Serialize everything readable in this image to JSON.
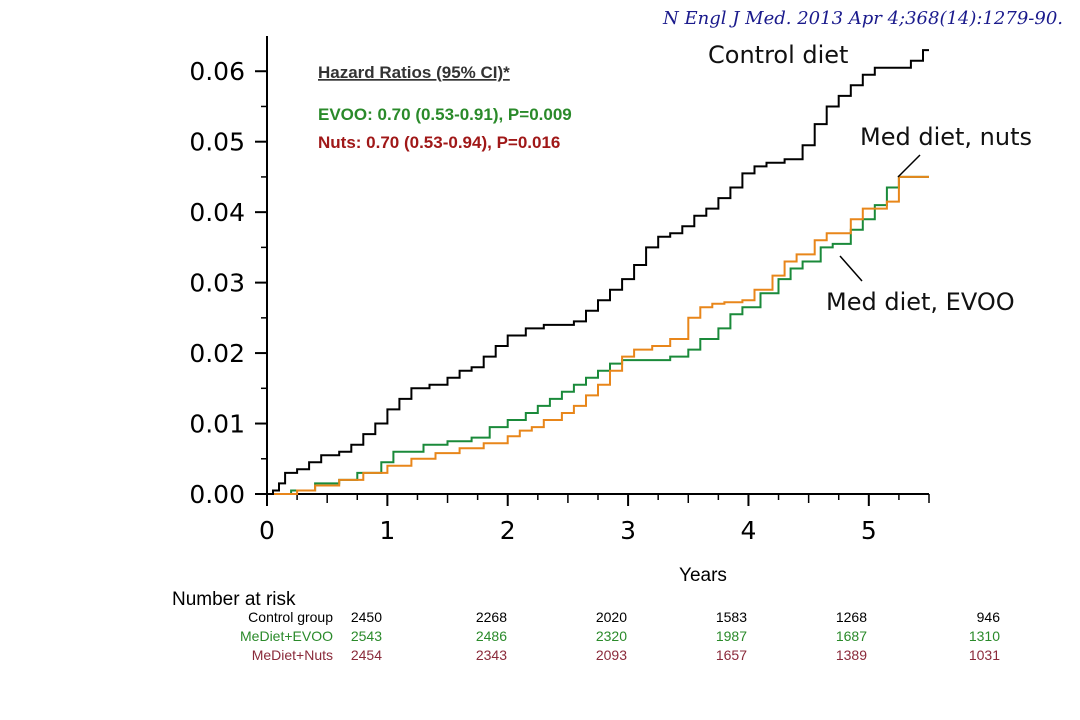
{
  "citation": "N Engl J Med. 2013 Apr 4;368(14):1279-90.",
  "colors": {
    "control": "#000000",
    "evoo": "#1a8a3a",
    "nuts": "#e8861a",
    "evoo_text": "#2a8a2a",
    "nuts_text": "#a01818",
    "risk_nuts_text": "#8a2a3a"
  },
  "chart_data": {
    "type": "line",
    "xlabel": "Years",
    "ylabel": "",
    "xlim": [
      0,
      5.5
    ],
    "ylim": [
      0,
      0.065
    ],
    "x_ticks": [
      "0",
      "1",
      "2",
      "3",
      "4",
      "5"
    ],
    "y_ticks": [
      "0.00",
      "0.01",
      "0.02",
      "0.03",
      "0.04",
      "0.05",
      "0.06"
    ],
    "step": true,
    "series": [
      {
        "name": "Control diet",
        "color_key": "control",
        "points": [
          [
            0,
            0
          ],
          [
            0.05,
            0.0005
          ],
          [
            0.1,
            0.0015
          ],
          [
            0.15,
            0.003
          ],
          [
            0.25,
            0.0035
          ],
          [
            0.35,
            0.0045
          ],
          [
            0.45,
            0.0055
          ],
          [
            0.6,
            0.006
          ],
          [
            0.7,
            0.007
          ],
          [
            0.8,
            0.0085
          ],
          [
            0.9,
            0.01
          ],
          [
            1.0,
            0.012
          ],
          [
            1.1,
            0.0135
          ],
          [
            1.2,
            0.015
          ],
          [
            1.35,
            0.0155
          ],
          [
            1.5,
            0.0165
          ],
          [
            1.6,
            0.0175
          ],
          [
            1.7,
            0.018
          ],
          [
            1.8,
            0.0195
          ],
          [
            1.9,
            0.021
          ],
          [
            2.0,
            0.0225
          ],
          [
            2.15,
            0.0235
          ],
          [
            2.3,
            0.024
          ],
          [
            2.55,
            0.0245
          ],
          [
            2.65,
            0.026
          ],
          [
            2.75,
            0.0275
          ],
          [
            2.85,
            0.029
          ],
          [
            2.95,
            0.0305
          ],
          [
            3.05,
            0.0325
          ],
          [
            3.15,
            0.035
          ],
          [
            3.25,
            0.0365
          ],
          [
            3.35,
            0.037
          ],
          [
            3.45,
            0.038
          ],
          [
            3.55,
            0.0395
          ],
          [
            3.65,
            0.0405
          ],
          [
            3.75,
            0.042
          ],
          [
            3.85,
            0.0435
          ],
          [
            3.95,
            0.0455
          ],
          [
            4.05,
            0.0465
          ],
          [
            4.15,
            0.047
          ],
          [
            4.3,
            0.0475
          ],
          [
            4.45,
            0.0495
          ],
          [
            4.55,
            0.0525
          ],
          [
            4.65,
            0.055
          ],
          [
            4.75,
            0.0565
          ],
          [
            4.85,
            0.058
          ],
          [
            4.95,
            0.0595
          ],
          [
            5.05,
            0.0605
          ],
          [
            5.25,
            0.0605
          ],
          [
            5.35,
            0.0615
          ],
          [
            5.45,
            0.063
          ],
          [
            5.5,
            0.063
          ]
        ]
      },
      {
        "name": "Med diet, nuts",
        "color_key": "nuts",
        "points": [
          [
            0,
            0
          ],
          [
            0.25,
            0.0005
          ],
          [
            0.4,
            0.0012
          ],
          [
            0.6,
            0.002
          ],
          [
            0.8,
            0.003
          ],
          [
            1.0,
            0.004
          ],
          [
            1.2,
            0.005
          ],
          [
            1.4,
            0.0058
          ],
          [
            1.6,
            0.0065
          ],
          [
            1.8,
            0.0072
          ],
          [
            2.0,
            0.0082
          ],
          [
            2.1,
            0.009
          ],
          [
            2.2,
            0.0095
          ],
          [
            2.3,
            0.0105
          ],
          [
            2.45,
            0.0115
          ],
          [
            2.55,
            0.0125
          ],
          [
            2.65,
            0.014
          ],
          [
            2.75,
            0.0155
          ],
          [
            2.85,
            0.0175
          ],
          [
            2.95,
            0.0195
          ],
          [
            3.05,
            0.0205
          ],
          [
            3.2,
            0.021
          ],
          [
            3.35,
            0.022
          ],
          [
            3.5,
            0.025
          ],
          [
            3.6,
            0.0265
          ],
          [
            3.7,
            0.027
          ],
          [
            3.8,
            0.0272
          ],
          [
            3.95,
            0.0275
          ],
          [
            4.05,
            0.029
          ],
          [
            4.2,
            0.031
          ],
          [
            4.3,
            0.033
          ],
          [
            4.4,
            0.034
          ],
          [
            4.55,
            0.036
          ],
          [
            4.65,
            0.037
          ],
          [
            4.85,
            0.039
          ],
          [
            4.95,
            0.0405
          ],
          [
            5.15,
            0.0415
          ],
          [
            5.25,
            0.045
          ],
          [
            5.5,
            0.045
          ]
        ]
      },
      {
        "name": "Med diet, EVOO",
        "color_key": "evoo",
        "points": [
          [
            0,
            0
          ],
          [
            0.2,
            0.0005
          ],
          [
            0.4,
            0.0015
          ],
          [
            0.6,
            0.002
          ],
          [
            0.75,
            0.003
          ],
          [
            0.95,
            0.0045
          ],
          [
            1.05,
            0.006
          ],
          [
            1.3,
            0.007
          ],
          [
            1.5,
            0.0075
          ],
          [
            1.7,
            0.008
          ],
          [
            1.85,
            0.0095
          ],
          [
            2.0,
            0.0105
          ],
          [
            2.15,
            0.0115
          ],
          [
            2.25,
            0.0125
          ],
          [
            2.35,
            0.0135
          ],
          [
            2.45,
            0.0145
          ],
          [
            2.55,
            0.0155
          ],
          [
            2.65,
            0.0165
          ],
          [
            2.75,
            0.0175
          ],
          [
            2.85,
            0.0185
          ],
          [
            2.95,
            0.019
          ],
          [
            3.25,
            0.019
          ],
          [
            3.35,
            0.0195
          ],
          [
            3.5,
            0.0205
          ],
          [
            3.6,
            0.022
          ],
          [
            3.75,
            0.0235
          ],
          [
            3.85,
            0.0255
          ],
          [
            3.95,
            0.0265
          ],
          [
            4.1,
            0.0285
          ],
          [
            4.25,
            0.0305
          ],
          [
            4.35,
            0.032
          ],
          [
            4.45,
            0.033
          ],
          [
            4.6,
            0.035
          ],
          [
            4.7,
            0.0355
          ],
          [
            4.85,
            0.0375
          ],
          [
            4.95,
            0.039
          ],
          [
            5.05,
            0.041
          ],
          [
            5.15,
            0.0435
          ],
          [
            5.25,
            0.045
          ],
          [
            5.5,
            0.045
          ]
        ]
      }
    ],
    "curve_labels": [
      "Control diet",
      "Med diet, nuts",
      "Med diet, EVOO"
    ],
    "hazard_ratios": {
      "title": "Hazard Ratios (95% CI)*",
      "evoo": "EVOO: 0.70 (0.53-0.91), P=0.009",
      "nuts": "Nuts: 0.70 (0.53-0.94), P=0.016"
    },
    "risk_table": {
      "title": "Number at risk",
      "rows": [
        {
          "label": "Control group",
          "color_key": "control",
          "values": [
            "2450",
            "2268",
            "2020",
            "1583",
            "1268",
            "946"
          ]
        },
        {
          "label": "MeDiet+EVOO",
          "color_key": "evoo_text",
          "values": [
            "2543",
            "2486",
            "2320",
            "1987",
            "1687",
            "1310"
          ]
        },
        {
          "label": "MeDiet+Nuts",
          "color_key": "risk_nuts_text",
          "values": [
            "2454",
            "2343",
            "2093",
            "1657",
            "1389",
            "1031"
          ]
        }
      ]
    }
  }
}
